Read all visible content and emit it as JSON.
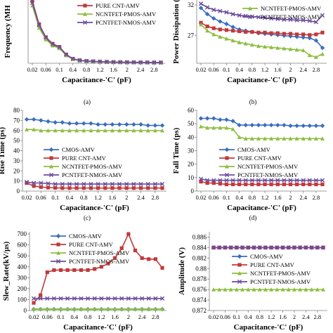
{
  "captions": {
    "a": "(a)",
    "b": "(b)",
    "c": "(c)",
    "d": "(d)"
  },
  "colors": {
    "cmos": "#3A6DC0",
    "pure": "#C0393B",
    "pmos": "#8DBE3E",
    "nmos": "#6A4C9C",
    "grid": "#d9d9d9"
  },
  "chart_data": [
    {
      "id": "a",
      "type": "line",
      "title": "",
      "xlabel": "Capacitance-'C' (pF)",
      "ylabel": "Frequency (MH",
      "x": [
        0.02,
        0.04,
        0.06,
        0.08,
        0.1,
        0.2,
        0.4,
        0.6,
        0.8,
        1.0,
        1.2,
        1.4,
        1.6,
        1.8,
        2.0,
        2.2,
        2.4,
        2.6,
        2.8,
        3.0
      ],
      "xticks": [
        "0.02",
        "0.06",
        "0.1",
        "0.4",
        "0.8",
        "1.2",
        "1.6",
        "2",
        "2.4",
        "2.8"
      ],
      "ylim": [
        0,
        340
      ],
      "yticks": [],
      "legend": "top-right",
      "series": [
        {
          "name": "",
          "key": "cmos",
          "values": [
            330,
            200,
            135,
            100,
            85,
            45,
            23,
            15,
            11,
            9,
            8,
            7,
            6,
            5.5,
            5,
            4.5,
            4.2,
            4,
            3.8,
            3.6
          ]
        },
        {
          "name": "PURE CNT-AMV",
          "key": "pure",
          "values": [
            335,
            210,
            140,
            105,
            88,
            47,
            24,
            16,
            12,
            10,
            8.5,
            7.5,
            6.5,
            6,
            5.5,
            5,
            4.6,
            4.3,
            4,
            3.8
          ]
        },
        {
          "name": "NCNTFET-PMOS-AMV",
          "key": "pmos",
          "values": [
            310,
            190,
            128,
            95,
            80,
            42,
            22,
            14,
            10.5,
            8.5,
            7.5,
            6.5,
            6,
            5.2,
            4.8,
            4.4,
            4,
            3.8,
            3.6,
            3.4
          ]
        },
        {
          "name": "PCNTFET-NMOS-AMV",
          "key": "nmos",
          "values": [
            325,
            205,
            138,
            102,
            86,
            46,
            23.5,
            15.5,
            11.5,
            9.5,
            8,
            7,
            6.2,
            5.7,
            5.2,
            4.8,
            4.4,
            4.1,
            3.9,
            3.7
          ]
        }
      ]
    },
    {
      "id": "b",
      "type": "line",
      "title": "",
      "xlabel": "Capacitance-'C' (pF)",
      "ylabel": "Power Dissipation (",
      "x": [
        0.02,
        0.04,
        0.06,
        0.08,
        0.1,
        0.2,
        0.4,
        0.6,
        0.8,
        1.0,
        1.2,
        1.4,
        1.6,
        1.8,
        2.0,
        2.2,
        2.4,
        2.6,
        2.8,
        3.0
      ],
      "xticks": [
        "0.02",
        "0.06",
        "0.1",
        "0.4",
        "0.8",
        "1.2",
        "1.6",
        "2",
        "2.4",
        "2.8"
      ],
      "ylim": [
        22.5,
        32.8
      ],
      "yticks": [
        "27",
        "32"
      ],
      "legend": "top-right",
      "series": [
        {
          "name": "",
          "key": "cmos",
          "values": [
            31.5,
            30.5,
            29.8,
            29.3,
            28.9,
            28.4,
            28.0,
            27.8,
            27.6,
            27.4,
            27.3,
            27.2,
            27.1,
            27.0,
            26.9,
            26.8,
            26.7,
            26.6,
            26.2,
            25.0
          ]
        },
        {
          "name": "",
          "key": "pure",
          "values": [
            29.1,
            28.5,
            28.2,
            28.0,
            27.9,
            27.8,
            27.7,
            27.6,
            27.6,
            27.5,
            27.5,
            27.4,
            27.4,
            27.3,
            27.3,
            27.2,
            27.2,
            27.1,
            27.2,
            27.5
          ]
        },
        {
          "name": "NCNTFET-PMOS-AMV",
          "key": "pmos",
          "values": [
            28.8,
            27.8,
            27.2,
            26.8,
            26.5,
            26.2,
            25.9,
            25.7,
            25.5,
            25.3,
            25.2,
            25.1,
            25.0,
            24.9,
            24.8,
            24.7,
            24.6,
            23.8,
            23.5,
            24.0
          ]
        },
        {
          "name": "PCNTFET-NMOS-AMV",
          "key": "nmos",
          "values": [
            32.2,
            31.6,
            31.2,
            31.0,
            30.8,
            30.5,
            30.3,
            30.2,
            30.1,
            30.0,
            29.9,
            29.8,
            29.7,
            29.6,
            29.6,
            29.5,
            29.5,
            29.4,
            29.2,
            30.3
          ]
        }
      ]
    },
    {
      "id": "c",
      "type": "line",
      "title": "",
      "xlabel": "Capacitance-'C' (pF)",
      "ylabel": "Rise Time (ps)",
      "x": [
        0.02,
        0.04,
        0.06,
        0.08,
        0.1,
        0.2,
        0.4,
        0.6,
        0.8,
        1.0,
        1.2,
        1.4,
        1.6,
        1.8,
        2.0,
        2.2,
        2.4,
        2.6,
        2.8,
        3.0
      ],
      "xticks": [
        "0.02",
        "0.06",
        "0.1",
        "0.4",
        "0.8",
        "1.2",
        "1.6",
        "2",
        "2.4",
        "2.8"
      ],
      "ylim": [
        0,
        80
      ],
      "yticks": [
        "0",
        "10",
        "20",
        "30",
        "40",
        "50",
        "60",
        "70",
        "80"
      ],
      "legend": "center",
      "series": [
        {
          "name": "CMOS-AMV",
          "key": "cmos",
          "values": [
            71,
            71,
            70,
            69,
            68,
            68,
            67,
            67,
            67,
            67,
            66,
            66,
            66,
            66,
            66,
            66,
            66,
            65,
            65,
            65
          ]
        },
        {
          "name": "PURE CNT-AMV",
          "key": "pure",
          "values": [
            8,
            5,
            4,
            3.5,
            3.2,
            3,
            3,
            3,
            3,
            3,
            3,
            3,
            3,
            3,
            3,
            3,
            3,
            3,
            3,
            3
          ]
        },
        {
          "name": "NCNTFET-PMOS-AMV",
          "key": "pmos",
          "values": [
            61,
            61,
            60,
            60,
            60,
            60,
            60,
            60,
            60,
            60,
            60,
            60,
            60,
            60,
            60,
            60,
            60,
            60,
            60,
            60
          ]
        },
        {
          "name": "PCNTFET-NMOS-AMV",
          "key": "nmos",
          "values": [
            9,
            8,
            8,
            7.5,
            7,
            7,
            7,
            7,
            7,
            7,
            7,
            7,
            7,
            7,
            7,
            7,
            7,
            7,
            7,
            7
          ]
        }
      ]
    },
    {
      "id": "d",
      "type": "line",
      "title": "",
      "xlabel": "Capacitance-'C' (pF)",
      "ylabel": "Fall Time (ps)",
      "x": [
        0.02,
        0.04,
        0.06,
        0.08,
        0.1,
        0.2,
        0.4,
        0.6,
        0.8,
        1.0,
        1.2,
        1.4,
        1.6,
        1.8,
        2.0,
        2.2,
        2.4,
        2.6,
        2.8,
        3.0
      ],
      "xticks": [
        "0.02",
        "0.06",
        "0.1",
        "0.4",
        "0.8",
        "1.2",
        "1.6",
        "2",
        "2.4",
        "2.8"
      ],
      "ylim": [
        0,
        60
      ],
      "yticks": [
        "0",
        "10",
        "20",
        "30",
        "40",
        "50",
        "60"
      ],
      "legend": "center",
      "series": [
        {
          "name": "CMOS-AMV",
          "key": "cmos",
          "values": [
            54,
            54,
            54,
            53,
            53,
            52,
            49,
            49,
            49,
            49,
            49,
            49,
            49,
            49,
            48.5,
            48.5,
            48.5,
            48.5,
            48.5,
            48.5
          ]
        },
        {
          "name": "PURE CNT-AMV",
          "key": "pure",
          "values": [
            7,
            6,
            6,
            5.5,
            5,
            5,
            5,
            5,
            5,
            5,
            5,
            5,
            5,
            5,
            5,
            5,
            5,
            5,
            5,
            5
          ]
        },
        {
          "name": "NCNTFET-PMOS-AMV",
          "key": "pmos",
          "values": [
            48,
            47,
            47,
            47,
            47,
            46,
            40,
            39,
            39,
            39,
            39,
            39,
            39,
            39,
            39,
            39,
            39,
            39,
            39,
            39
          ]
        },
        {
          "name": "PCNTFET-NMOS-AMV",
          "key": "nmos",
          "values": [
            9,
            8,
            8,
            8,
            8,
            8,
            8,
            8,
            8,
            8,
            8,
            8,
            8,
            8,
            8,
            8,
            8,
            8,
            8,
            8
          ]
        }
      ]
    },
    {
      "id": "e",
      "type": "line",
      "title": "",
      "xlabel": "Capacitance-'C' (pF)",
      "ylabel": "Slew_Rate(kV/µs)",
      "x": [
        0.02,
        0.04,
        0.06,
        0.08,
        0.1,
        0.2,
        0.4,
        0.6,
        0.8,
        1.0,
        1.2,
        1.4,
        1.6,
        1.8,
        2.0,
        2.2,
        2.4,
        2.6,
        2.8,
        3.0
      ],
      "xticks": [
        "0.02",
        "0.06",
        "0.1",
        "0.4",
        "0.8",
        "1.2",
        "1.6",
        "2",
        "2.4",
        "2.8"
      ],
      "ylim": [
        0,
        720
      ],
      "yticks": [
        "0",
        "100",
        "200",
        "300",
        "400",
        "500",
        "600",
        "700"
      ],
      "legend": "top-left",
      "series": [
        {
          "name": "CMOS-AMV",
          "key": "cmos",
          "values": [
            12,
            12,
            12,
            12,
            12,
            12,
            12,
            12,
            12,
            12,
            12,
            12,
            12,
            12,
            12,
            12,
            12,
            12,
            12,
            12
          ]
        },
        {
          "name": "PURE CNT-AMV",
          "key": "pure",
          "values": [
            70,
            140,
            350,
            370,
            370,
            370,
            370,
            370,
            370,
            380,
            400,
            430,
            480,
            570,
            700,
            550,
            480,
            470,
            470,
            390
          ]
        },
        {
          "name": "NCNTFET-PMOS-AMV",
          "key": "pmos",
          "values": [
            14,
            14,
            14,
            14,
            14,
            14,
            14,
            14,
            14,
            14,
            14,
            14,
            14,
            14,
            14,
            14,
            14,
            14,
            14,
            14
          ]
        },
        {
          "name": "PCNTFET-NMOS-AMV",
          "key": "nmos",
          "values": [
            110,
            110,
            110,
            110,
            110,
            110,
            110,
            110,
            110,
            110,
            110,
            110,
            110,
            110,
            110,
            110,
            110,
            110,
            110,
            110
          ]
        }
      ]
    },
    {
      "id": "f",
      "type": "line",
      "title": "",
      "xlabel": "Capacitance-'C' (pF)",
      "ylabel": "Amplitude (V)",
      "x": [
        0.02,
        0.04,
        0.06,
        0.08,
        0.1,
        0.2,
        0.4,
        0.6,
        0.8,
        1.0,
        1.2,
        1.4,
        1.6,
        1.8,
        2.0,
        2.2,
        2.4,
        2.6,
        2.8,
        3.0
      ],
      "xticks": [
        "0.02",
        "0.06",
        "0.1",
        "0.4",
        "0.8",
        "1.2",
        "1.6",
        "2",
        "2.4",
        "2.8"
      ],
      "ylim": [
        0.872,
        0.887
      ],
      "yticks": [
        "0.872",
        "0.874",
        "0.876",
        "0.878",
        "0.88",
        "0.882",
        "0.884",
        "0.886"
      ],
      "legend": "center",
      "series": [
        {
          "name": "CMOS-AMV",
          "key": "cmos",
          "values": [
            0.884,
            0.884,
            0.884,
            0.884,
            0.884,
            0.884,
            0.884,
            0.884,
            0.884,
            0.884,
            0.884,
            0.884,
            0.884,
            0.884,
            0.884,
            0.884,
            0.884,
            0.884,
            0.884,
            0.884
          ]
        },
        {
          "name": "PURE CNT-AMV",
          "key": "pure",
          "values": [
            0.884,
            0.884,
            0.884,
            0.884,
            0.884,
            0.884,
            0.884,
            0.884,
            0.884,
            0.884,
            0.884,
            0.884,
            0.884,
            0.884,
            0.884,
            0.884,
            0.884,
            0.884,
            0.884,
            0.884
          ]
        },
        {
          "name": "NCNTFET-PMOS-AMV",
          "key": "pmos",
          "values": [
            0.876,
            0.876,
            0.876,
            0.876,
            0.876,
            0.876,
            0.876,
            0.876,
            0.876,
            0.876,
            0.876,
            0.876,
            0.876,
            0.876,
            0.876,
            0.876,
            0.876,
            0.876,
            0.876,
            0.876
          ]
        },
        {
          "name": "PCNTFET-NMOS-AMV",
          "key": "nmos",
          "values": [
            0.884,
            0.884,
            0.884,
            0.884,
            0.884,
            0.884,
            0.884,
            0.884,
            0.884,
            0.884,
            0.884,
            0.884,
            0.884,
            0.884,
            0.884,
            0.884,
            0.884,
            0.884,
            0.884,
            0.884
          ]
        }
      ]
    }
  ]
}
